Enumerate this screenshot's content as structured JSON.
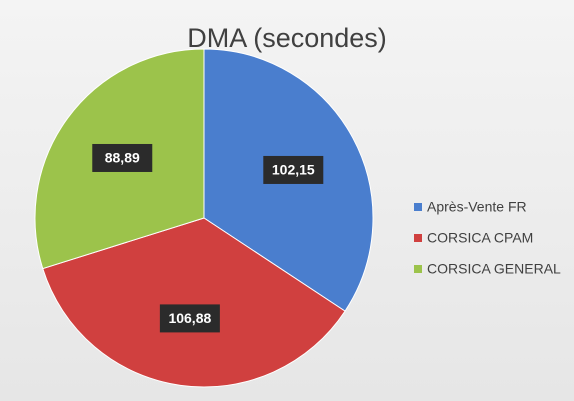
{
  "chart_data": {
    "type": "pie",
    "title": "DMA (secondes)",
    "categories": [
      "Après-Vente FR",
      "CORSICA CPAM",
      "CORSICA GENERAL"
    ],
    "values": [
      102.15,
      106.88,
      88.89
    ],
    "value_labels": [
      "102,15",
      "106,88",
      "88,89"
    ],
    "colors": [
      "#4a7ece",
      "#d0403f",
      "#9cc34b"
    ],
    "legend": "right"
  }
}
